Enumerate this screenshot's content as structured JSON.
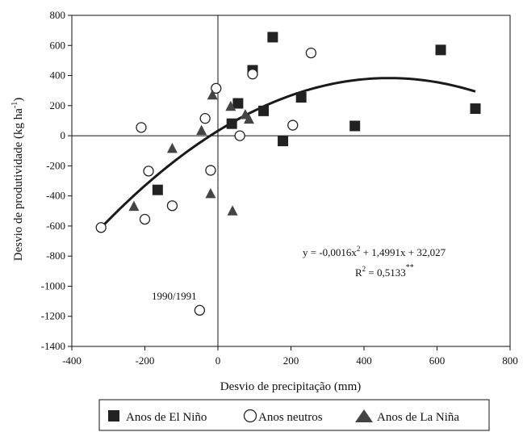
{
  "chart_data": {
    "type": "scatter",
    "xlabel": "Desvio de precipitação (mm)",
    "ylabel": "Desvio de produtividade (kg ha",
    "ylabel_sup": "-1",
    "ylabel_tail": ")",
    "xlim": [
      -400,
      800
    ],
    "ylim": [
      -1400,
      800
    ],
    "x_ticks": [
      -400,
      -200,
      0,
      200,
      400,
      600,
      800
    ],
    "y_ticks": [
      -1400,
      -1200,
      -1000,
      -800,
      -600,
      -400,
      -200,
      0,
      200,
      400,
      600,
      800
    ],
    "grid": false,
    "legend_position": "bottom",
    "series": [
      {
        "name": "Anos de El Niño",
        "marker": "square",
        "color": "#222222",
        "points": [
          [
            -165,
            -360
          ],
          [
            38,
            80
          ],
          [
            55,
            215
          ],
          [
            95,
            435
          ],
          [
            125,
            165
          ],
          [
            150,
            655
          ],
          [
            178,
            -35
          ],
          [
            228,
            255
          ],
          [
            375,
            65
          ],
          [
            610,
            570
          ],
          [
            705,
            180
          ]
        ]
      },
      {
        "name": "Anos neutros",
        "marker": "circle",
        "color": "#ffffff",
        "points": [
          [
            -320,
            -610
          ],
          [
            -210,
            55
          ],
          [
            -200,
            -555
          ],
          [
            -190,
            -235
          ],
          [
            -125,
            -465
          ],
          [
            -50,
            -1160
          ],
          [
            -35,
            115
          ],
          [
            -20,
            -230
          ],
          [
            -5,
            315
          ],
          [
            60,
            0
          ],
          [
            95,
            410
          ],
          [
            205,
            70
          ],
          [
            255,
            550
          ]
        ]
      },
      {
        "name": "Anos de La Niña",
        "marker": "triangle",
        "color": "#444444",
        "points": [
          [
            -230,
            -470
          ],
          [
            -125,
            -85
          ],
          [
            -45,
            35
          ],
          [
            -20,
            -385
          ],
          [
            -15,
            270
          ],
          [
            35,
            195
          ],
          [
            40,
            -500
          ],
          [
            75,
            140
          ],
          [
            85,
            110
          ]
        ]
      }
    ],
    "trendline": {
      "equation_main": "y = -0,0016x",
      "equation_sup1": "2",
      "equation_rest": " + 1,4991x + 32,027",
      "r2_label": "R",
      "r2_sup": "2",
      "r2_value": " = 0,5133",
      "r2_sig": "**",
      "a": -0.0016,
      "b": 1.4991,
      "c": 32.027,
      "x_range": [
        -320,
        705
      ]
    },
    "annotations": [
      {
        "text": "1990/1991"
      }
    ]
  }
}
